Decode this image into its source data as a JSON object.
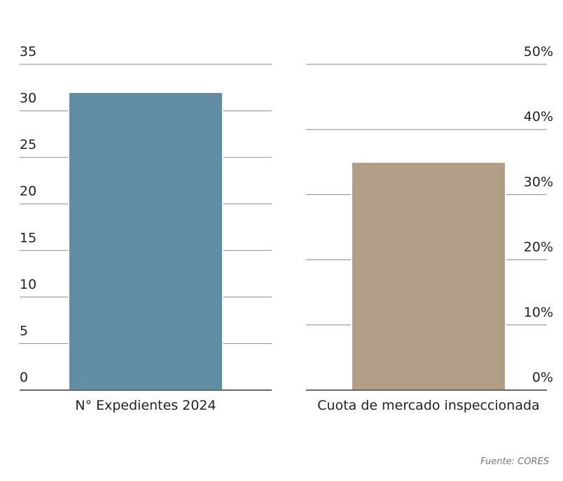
{
  "chart_data": [
    {
      "type": "bar",
      "categories": [
        "N° Expedientes 2024"
      ],
      "values": [
        32
      ],
      "color": "#628ea5",
      "ylim": [
        0,
        35
      ],
      "yticks": [
        0,
        5,
        10,
        15,
        20,
        25,
        30,
        35
      ],
      "grid": true
    },
    {
      "type": "bar",
      "categories": [
        "Cuota de mercado inspeccionada"
      ],
      "values": [
        35
      ],
      "color": "#b09f86",
      "ylim": [
        0,
        50
      ],
      "yticks": [
        {
          "value": 0,
          "label": "0%"
        },
        {
          "value": 10,
          "label": "10%"
        },
        {
          "value": 20,
          "label": "20%"
        },
        {
          "value": 30,
          "label": "30%"
        },
        {
          "value": 40,
          "label": "40%"
        },
        {
          "value": 50,
          "label": "50%"
        }
      ],
      "grid": true
    }
  ],
  "source": "Fuente: CORES"
}
